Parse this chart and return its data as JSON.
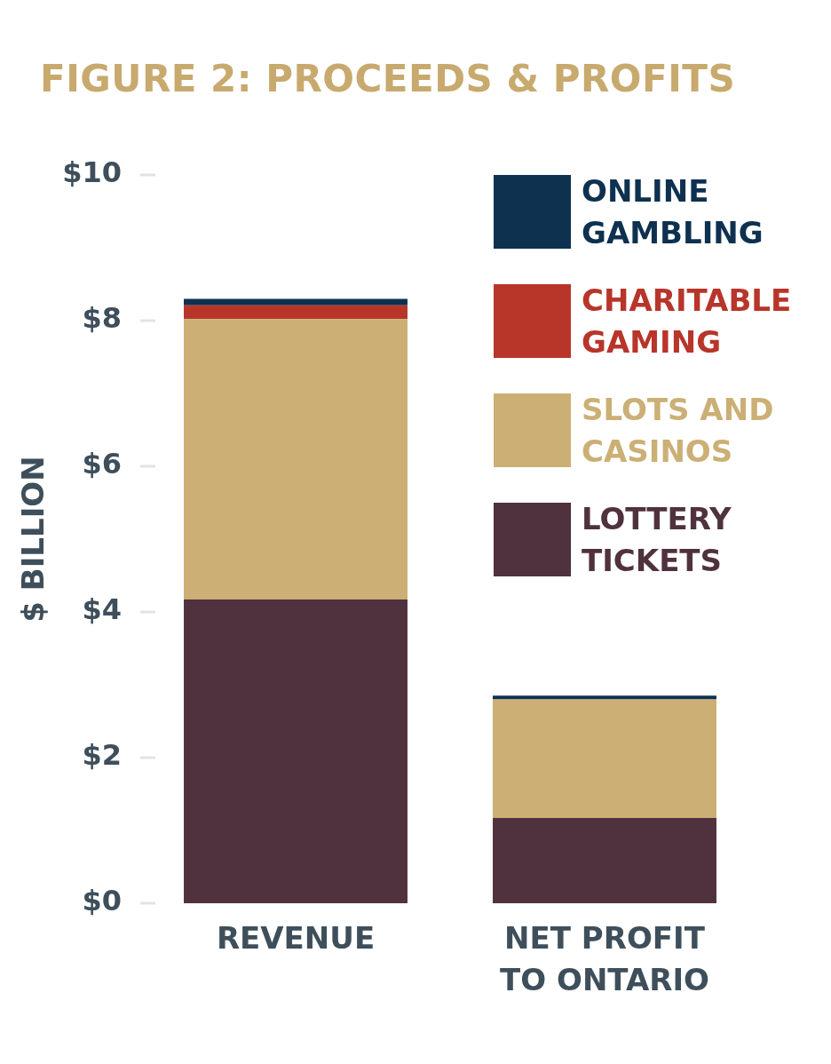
{
  "chart_data": {
    "type": "bar",
    "title": "FIGURE 2: PROCEEDS & PROFITS",
    "ylabel": "$ BILLION",
    "categories": [
      "REVENUE",
      "NET PROFIT TO ONTARIO"
    ],
    "series": [
      {
        "name": "LOTTERY TICKETS",
        "color": "#50323e",
        "values": [
          4.17,
          1.17
        ]
      },
      {
        "name": "SLOTS AND CASINOS",
        "color": "#cbaf75",
        "values": [
          3.85,
          1.63
        ]
      },
      {
        "name": "CHARITABLE GAMING",
        "color": "#b8352a",
        "values": [
          0.19,
          null
        ]
      },
      {
        "name": "ONLINE GAMBLING",
        "color": "#0e3150",
        "values": [
          0.09,
          0.05
        ]
      }
    ],
    "stacked": true,
    "ylim": [
      0,
      10
    ],
    "yticks": [
      {
        "value": 0,
        "label": "$0"
      },
      {
        "value": 2,
        "label": "$2"
      },
      {
        "value": 4,
        "label": "$4"
      },
      {
        "value": 6,
        "label": "$6"
      },
      {
        "value": 8,
        "label": "$8"
      },
      {
        "value": 10,
        "label": "$10"
      }
    ],
    "legend": "top right"
  }
}
